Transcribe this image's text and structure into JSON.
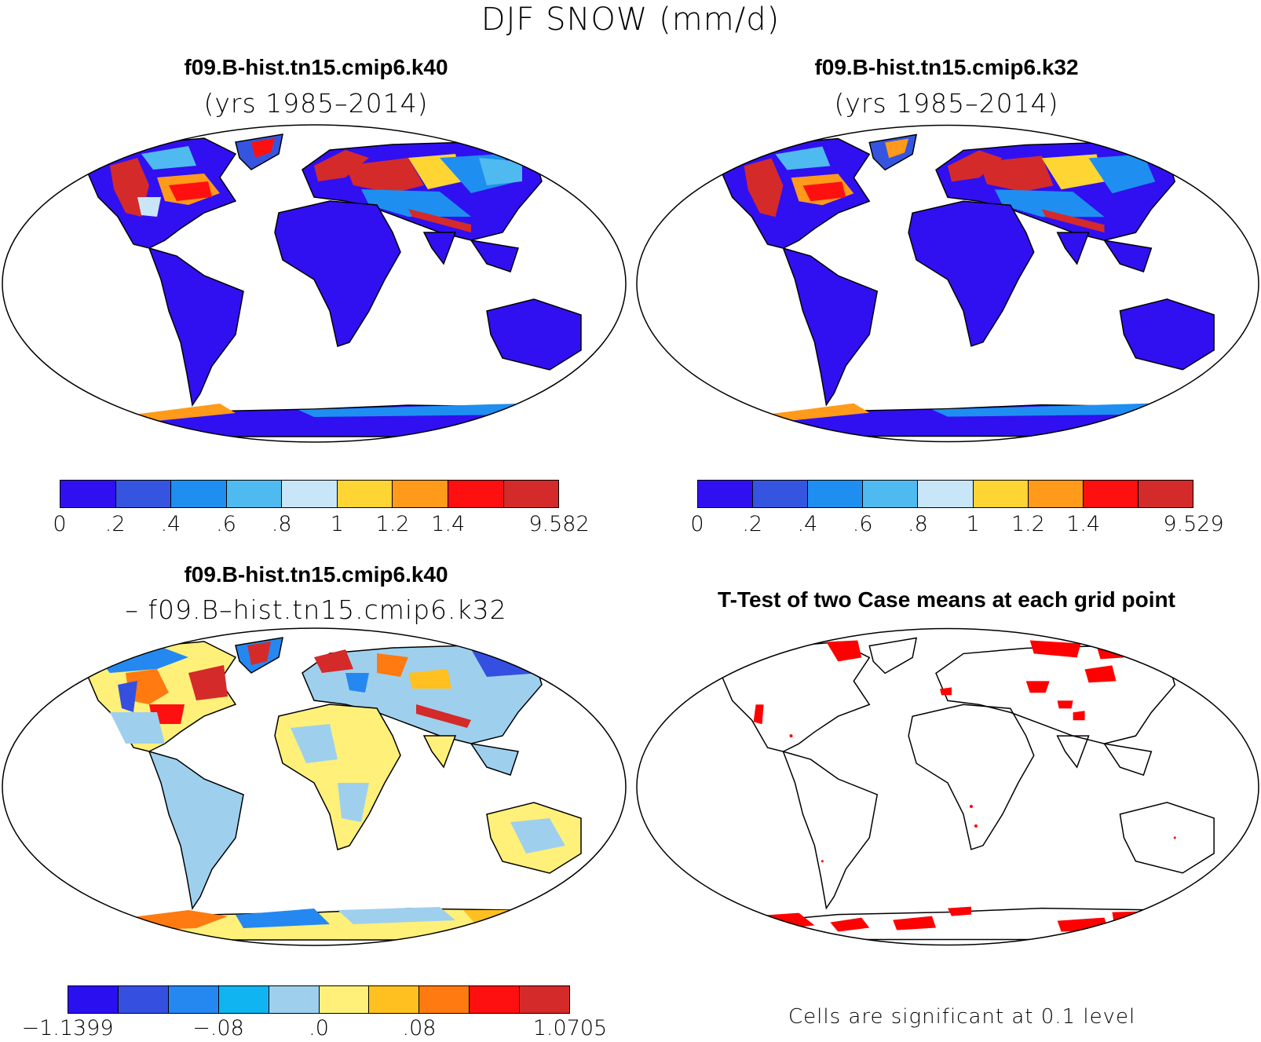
{
  "title": "DJF SNOW (mm/d)",
  "panels": {
    "top_left": {
      "title": "f09.B-hist.tn15.cmip6.k40",
      "subtitle": "(yrs 1985–2014)"
    },
    "top_right": {
      "title": "f09.B-hist.tn15.cmip6.k32",
      "subtitle": "(yrs 1985–2014)"
    },
    "bottom_left": {
      "title": "f09.B-hist.tn15.cmip6.k40",
      "subtitle": "– f09.B–hist.tn15.cmip6.k32"
    },
    "bottom_right": {
      "title": "T-Test of two Case means at each grid point",
      "footnote": "Cells are significant at 0.1 level"
    }
  },
  "colorbars": {
    "snow_left": {
      "colors": [
        "#3010f0",
        "#3555e0",
        "#1e8ff0",
        "#4fbaf0",
        "#c8e6f8",
        "#ffd534",
        "#ff9a1a",
        "#ff1010",
        "#d52a2a"
      ],
      "labels": [
        "0",
        ".2",
        ".4",
        ".6",
        ".8",
        "1",
        "1.2",
        "1.4",
        "9.582"
      ]
    },
    "snow_right": {
      "colors": [
        "#3010f0",
        "#3555e0",
        "#1e8ff0",
        "#4fbaf0",
        "#c8e6f8",
        "#ffd534",
        "#ff9a1a",
        "#ff1010",
        "#d52a2a"
      ],
      "labels": [
        "0",
        ".2",
        ".4",
        ".6",
        ".8",
        "1",
        "1.2",
        "1.4",
        "9.529"
      ]
    },
    "diff": {
      "colors": [
        "#2a10f0",
        "#3550e0",
        "#2588f0",
        "#10b4f0",
        "#9ed0ee",
        "#fff07a",
        "#ffc020",
        "#ff7a10",
        "#ff1010",
        "#d52a2a"
      ],
      "labels": [
        "−1.1399",
        "−.08",
        ".0",
        ".08",
        "1.0705"
      ]
    }
  },
  "colors": {
    "land_low": "#3010f0",
    "significant": "#ff0000",
    "diff_neutral": "#fff07a"
  }
}
